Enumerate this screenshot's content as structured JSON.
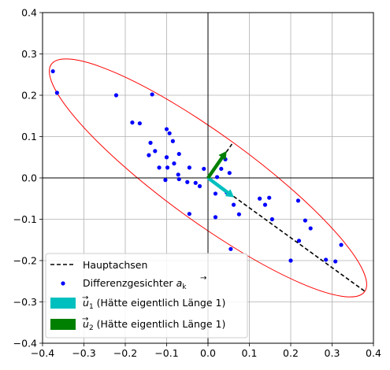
{
  "chart_data": {
    "type": "scatter",
    "xlim": [
      -0.4,
      0.4
    ],
    "ylim": [
      -0.4,
      0.4
    ],
    "x_ticks": [
      -0.4,
      -0.3,
      -0.2,
      -0.1,
      0.0,
      0.1,
      0.2,
      0.3,
      0.4
    ],
    "y_ticks": [
      -0.4,
      -0.3,
      -0.2,
      -0.1,
      0.0,
      0.1,
      0.2,
      0.3,
      0.4
    ],
    "x_tick_labels": [
      "−0.4",
      "−0.3",
      "−0.2",
      "−0.1",
      "0.0",
      "0.1",
      "0.2",
      "0.3",
      "0.4"
    ],
    "y_tick_labels": [
      "−0.4",
      "−0.3",
      "−0.2",
      "−0.1",
      "0.0",
      "0.1",
      "0.2",
      "0.3",
      "0.4"
    ],
    "grid": true,
    "legend_position": "lower-left",
    "colors": {
      "points": "#0000ff",
      "ellipse": "#ff0000",
      "axes_lines": "#000000",
      "u1": "#00bfbf",
      "u2": "#008000",
      "hauptachsen": "#000000",
      "grid": "#b0b0b0"
    },
    "series": [
      {
        "name": "Differenzgesichter a⃗ₖ",
        "points": [
          [
            -0.375,
            0.258
          ],
          [
            -0.365,
            0.206
          ],
          [
            -0.222,
            0.2
          ],
          [
            -0.135,
            0.202
          ],
          [
            -0.183,
            0.134
          ],
          [
            -0.165,
            0.132
          ],
          [
            -0.1,
            0.118
          ],
          [
            -0.093,
            0.108
          ],
          [
            -0.085,
            0.089
          ],
          [
            -0.139,
            0.085
          ],
          [
            -0.128,
            0.065
          ],
          [
            -0.143,
            0.055
          ],
          [
            -0.1,
            0.05
          ],
          [
            -0.07,
            0.058
          ],
          [
            -0.082,
            0.035
          ],
          [
            -0.118,
            0.025
          ],
          [
            -0.098,
            0.025
          ],
          [
            -0.045,
            0.025
          ],
          [
            -0.072,
            0.008
          ],
          [
            -0.01,
            0.022
          ],
          [
            -0.07,
            -0.003
          ],
          [
            -0.103,
            -0.005
          ],
          [
            -0.05,
            -0.01
          ],
          [
            -0.03,
            -0.012
          ],
          [
            -0.02,
            -0.02
          ],
          [
            0.022,
            0.002
          ],
          [
            0.032,
            0.022
          ],
          [
            0.042,
            0.045
          ],
          [
            0.052,
            0.012
          ],
          [
            0.045,
            -0.035
          ],
          [
            0.018,
            -0.038
          ],
          [
            0.062,
            -0.065
          ],
          [
            0.075,
            -0.088
          ],
          [
            0.018,
            -0.095
          ],
          [
            -0.045,
            -0.087
          ],
          [
            0.125,
            -0.05
          ],
          [
            0.148,
            -0.048
          ],
          [
            0.138,
            -0.065
          ],
          [
            0.155,
            -0.1
          ],
          [
            0.218,
            -0.055
          ],
          [
            0.235,
            -0.103
          ],
          [
            0.248,
            -0.122
          ],
          [
            0.22,
            -0.152
          ],
          [
            0.2,
            -0.2
          ],
          [
            0.285,
            -0.198
          ],
          [
            0.308,
            -0.202
          ],
          [
            0.322,
            -0.162
          ],
          [
            0.055,
            -0.172
          ]
        ]
      },
      {
        "name": "Hauptachsen",
        "style": "dashed",
        "segments": [
          [
            [
              0.0,
              0.0
            ],
            [
              0.058,
              0.082
            ]
          ],
          [
            [
              0.0,
              0.0
            ],
            [
              0.38,
              -0.275
            ]
          ]
        ]
      },
      {
        "name": "u⃗₁ (Hätte eigentlich Länge 1)",
        "arrow": {
          "from": [
            0.0,
            0.0
          ],
          "to": [
            0.063,
            -0.047
          ]
        }
      },
      {
        "name": "u⃗₂ (Hätte eigentlich Länge 1)",
        "arrow": {
          "from": [
            0.0,
            0.0
          ],
          "to": [
            0.045,
            0.065
          ]
        }
      }
    ],
    "ellipse": {
      "center": [
        0.0,
        0.0
      ],
      "semi_axis_major": 0.468,
      "semi_axis_minor": 0.105,
      "angle_deg": -36
    },
    "legend": {
      "hauptachsen": "Hauptachsen",
      "differenzgesichter_main": "Differenzgesichter ",
      "differenzgesichter_vec": "a",
      "differenzgesichter_sub": "k",
      "u1_vec": "u",
      "u1_sub": "1",
      "u1_rest": " (Hätte eigentlich Länge 1)",
      "u2_vec": "u",
      "u2_sub": "2",
      "u2_rest": " (Hätte eigentlich Länge 1)"
    }
  }
}
